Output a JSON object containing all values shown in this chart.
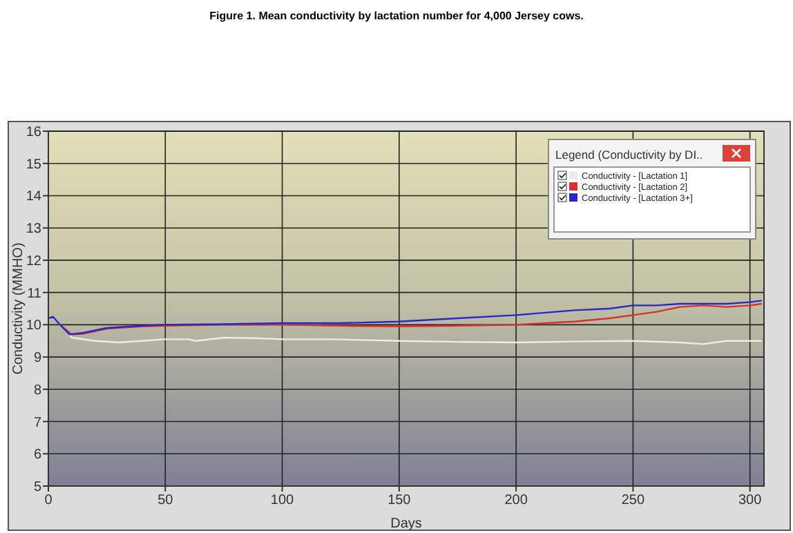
{
  "chart_data": {
    "type": "line",
    "title": "Figure 1. Mean conductivity by lactation number for 4,000 Jersey cows.",
    "xlabel": "Days",
    "ylabel": "Conductivity  (MMHO)",
    "legend_title": "Legend (Conductivity by DI..",
    "xlim": [
      0,
      306
    ],
    "xticks": [
      0,
      50,
      100,
      150,
      200,
      250,
      300
    ],
    "ylim": [
      5,
      16
    ],
    "yticks": [
      5,
      6,
      7,
      8,
      9,
      10,
      11,
      12,
      13,
      14,
      15,
      16
    ],
    "grid": true,
    "legend": "top right",
    "marker": "none",
    "line_style": "solid",
    "series": [
      {
        "name": "Conductivity - [Lactation 1]",
        "color": "#ececec",
        "x": [
          0,
          2,
          5,
          10,
          20,
          30,
          40,
          50,
          60,
          63,
          75,
          90,
          100,
          120,
          150,
          175,
          200,
          225,
          250,
          270,
          280,
          290,
          305
        ],
        "values": [
          10.2,
          10.25,
          10.0,
          9.6,
          9.5,
          9.45,
          9.5,
          9.55,
          9.55,
          9.5,
          9.6,
          9.58,
          9.55,
          9.55,
          9.5,
          9.47,
          9.45,
          9.48,
          9.5,
          9.45,
          9.4,
          9.5,
          9.5
        ]
      },
      {
        "name": "Conductivity - [Lactation 2]",
        "color": "#d83030",
        "x": [
          5,
          10,
          15,
          25,
          40,
          50,
          75,
          100,
          125,
          150,
          175,
          200,
          225,
          240,
          250,
          260,
          270,
          280,
          290,
          300,
          305
        ],
        "values": [
          10.0,
          9.7,
          9.72,
          9.88,
          9.95,
          9.97,
          10.0,
          10.0,
          9.97,
          9.95,
          9.97,
          10.0,
          10.1,
          10.2,
          10.3,
          10.4,
          10.55,
          10.6,
          10.55,
          10.6,
          10.65
        ]
      },
      {
        "name": "Conductivity - [Lactation 3+]",
        "color": "#2828c8",
        "x": [
          0,
          2,
          5,
          9,
          15,
          25,
          40,
          50,
          75,
          100,
          125,
          150,
          175,
          200,
          225,
          240,
          250,
          260,
          270,
          280,
          290,
          300,
          305
        ],
        "values": [
          10.2,
          10.25,
          10.0,
          9.7,
          9.75,
          9.9,
          9.97,
          10.0,
          10.02,
          10.05,
          10.05,
          10.1,
          10.2,
          10.3,
          10.45,
          10.5,
          10.6,
          10.6,
          10.65,
          10.65,
          10.65,
          10.7,
          10.75
        ]
      }
    ]
  }
}
